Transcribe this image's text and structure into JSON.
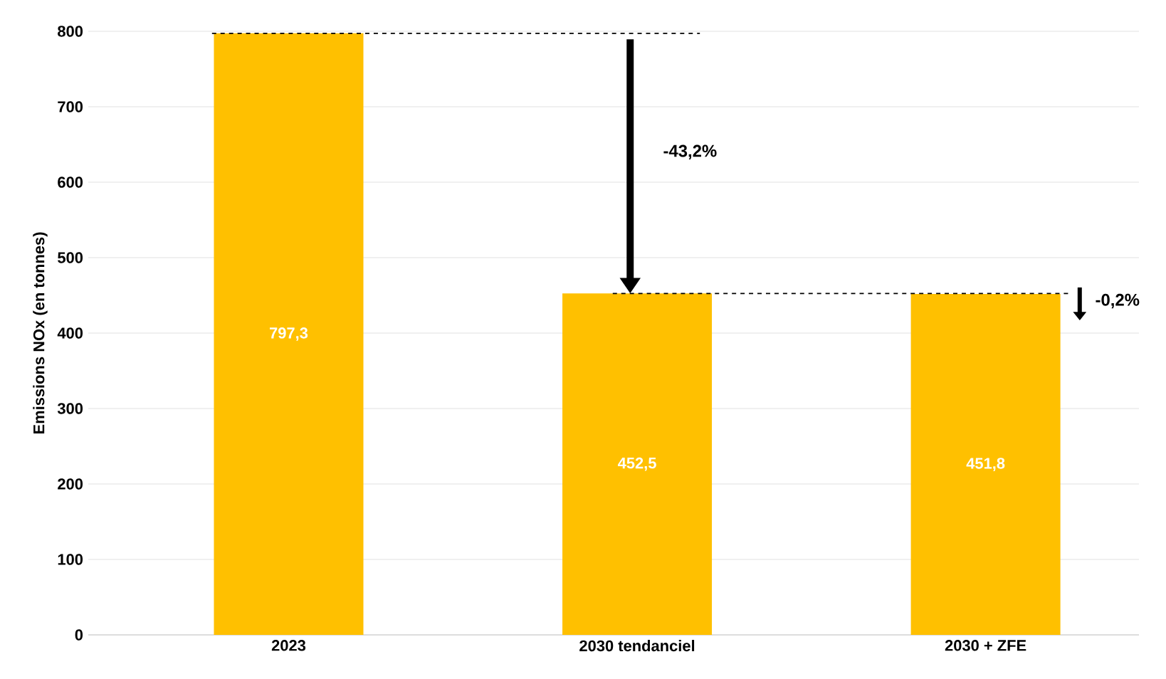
{
  "chart_data": {
    "type": "bar",
    "ylabel": "Emissions NOx (en tonnes)",
    "categories": [
      "2023",
      "2030 tendanciel",
      "2030 + ZFE"
    ],
    "values": [
      797.3,
      452.5,
      451.8
    ],
    "value_labels": [
      "797,3",
      "452,5",
      "451,8"
    ],
    "color": "#ffc000",
    "ylim": [
      0,
      800
    ],
    "yticks": [
      0,
      100,
      200,
      300,
      400,
      500,
      600,
      700,
      800
    ],
    "grid": "y",
    "ref_lines": [
      {
        "axis": "y",
        "value": 797.3,
        "line_style": "dashed"
      },
      {
        "axis": "y",
        "value": 452.5,
        "line_style": "dashed"
      }
    ],
    "annotations": [
      "-43,2%",
      "-0,2%"
    ]
  }
}
